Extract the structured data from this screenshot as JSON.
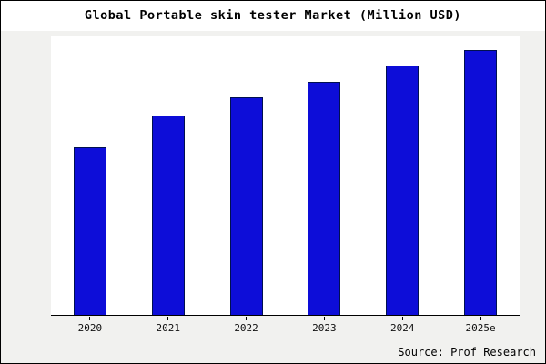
{
  "chart_data": {
    "type": "bar",
    "title": "Global Portable skin tester Market (Million USD)",
    "categories": [
      "2020",
      "2021",
      "2022",
      "2023",
      "2024",
      "2025e"
    ],
    "values": [
      63,
      75,
      82,
      88,
      94,
      100
    ],
    "ylim": [
      0,
      105
    ],
    "xlabel": "",
    "ylabel": "",
    "grid": false,
    "legend": false,
    "bar_color": "#0d0dd8",
    "bar_edge_color": "#001050",
    "axis_color": "#000000",
    "background_color": "#f1f1ef",
    "plot_background_color": "#ffffff"
  },
  "source": {
    "label": "Source: Prof Research"
  }
}
